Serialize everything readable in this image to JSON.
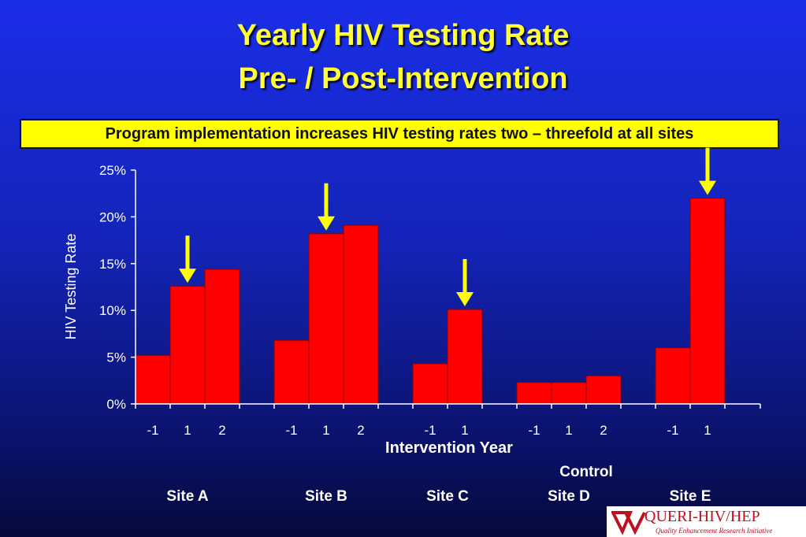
{
  "slide": {
    "title_line1": "Yearly HIV Testing Rate",
    "title_line2": "Pre- / Post-Intervention",
    "callout": "Program implementation increases HIV testing rates two – threefold at all sites",
    "logo_text": "QUERI-HIV/HEP",
    "logo_subtext": "Quality Enhancement Research Initiative"
  },
  "chart_data": {
    "type": "bar",
    "ylabel": "HIV Testing Rate",
    "xlabel": "Intervention Year",
    "ylim": [
      0,
      25
    ],
    "yticks": [
      "0%",
      "5%",
      "10%",
      "15%",
      "20%",
      "25%"
    ],
    "bar_color": "#ff0000",
    "annotation_color": "#ffff00",
    "groups": [
      {
        "label": "Site A",
        "years": [
          "-1",
          "1",
          "2"
        ],
        "values": [
          5.2,
          12.6,
          14.4
        ],
        "arrow_on": "1"
      },
      {
        "label": "Site B",
        "years": [
          "-1",
          "1",
          "2"
        ],
        "values": [
          6.8,
          18.2,
          19.1
        ],
        "arrow_on": "1"
      },
      {
        "label": "Site C",
        "years": [
          "-1",
          "1"
        ],
        "values": [
          4.3,
          10.1
        ],
        "arrow_on": "1"
      },
      {
        "label": "Site D",
        "label_prefix": "Control",
        "years": [
          "-1",
          "1",
          "2"
        ],
        "values": [
          2.3,
          2.3,
          3.0
        ]
      },
      {
        "label": "Site E",
        "years": [
          "-1",
          "1"
        ],
        "values": [
          6.0,
          22.0
        ],
        "arrow_on": "1"
      }
    ]
  }
}
